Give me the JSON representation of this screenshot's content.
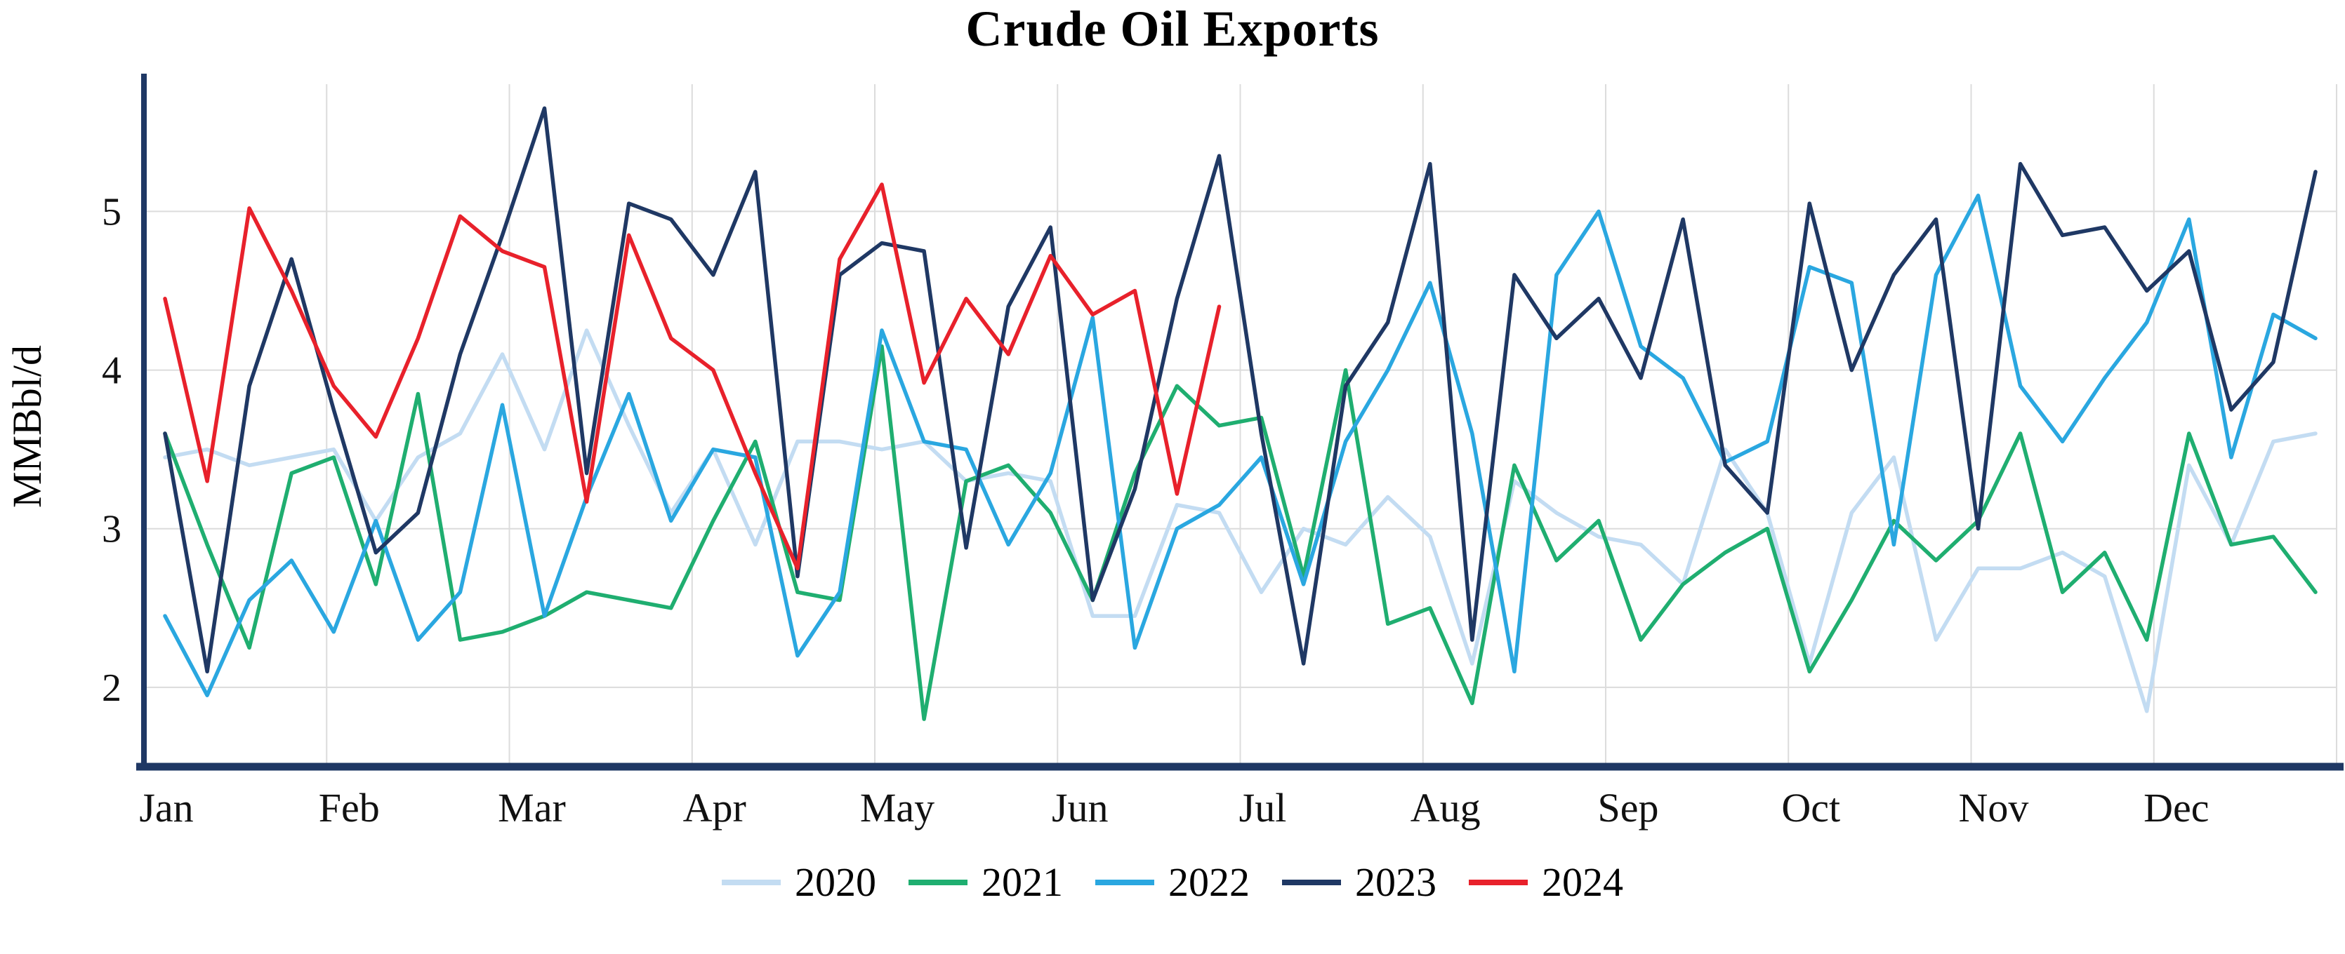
{
  "title": "Crude Oil Exports",
  "colors": {
    "axis": "#1F3864",
    "grid": "#DCDCDC",
    "background": "#FFFFFF",
    "text": "#111111"
  },
  "chart_data": {
    "type": "line",
    "title": "Crude Oil Exports",
    "xlabel": "",
    "ylabel": "MMBbl/d",
    "x_unit": "week-of-year",
    "points_per_year": 52,
    "x_tick_labels": [
      "Jan",
      "Feb",
      "Mar",
      "Apr",
      "May",
      "Jun",
      "Jul",
      "Aug",
      "Sep",
      "Oct",
      "Nov",
      "Dec"
    ],
    "y_ticks": [
      2,
      3,
      4,
      5
    ],
    "ylim": [
      1.5,
      5.78
    ],
    "grid": true,
    "legend_position": "bottom",
    "series": [
      {
        "name": "2020",
        "color": "#C3DCF2",
        "values": [
          3.45,
          3.5,
          3.4,
          3.45,
          3.5,
          3.05,
          3.45,
          3.6,
          4.1,
          3.5,
          4.25,
          3.65,
          3.1,
          3.5,
          2.9,
          3.55,
          3.55,
          3.5,
          3.55,
          3.3,
          3.35,
          3.3,
          2.45,
          2.45,
          3.15,
          3.1,
          2.6,
          3.0,
          2.9,
          3.2,
          2.95,
          2.15,
          3.3,
          3.1,
          2.95,
          2.9,
          2.65,
          3.5,
          3.1,
          2.15,
          3.1,
          3.45,
          2.3,
          2.75,
          2.75,
          2.85,
          2.7,
          1.85,
          3.4,
          2.9,
          3.55,
          3.6
        ]
      },
      {
        "name": "2021",
        "color": "#1FAE70",
        "values": [
          3.6,
          2.9,
          2.25,
          3.35,
          3.45,
          2.65,
          3.85,
          2.3,
          2.35,
          2.45,
          2.6,
          2.55,
          2.5,
          3.05,
          3.55,
          2.6,
          2.55,
          4.15,
          1.8,
          3.3,
          3.4,
          3.1,
          2.55,
          3.35,
          3.9,
          3.65,
          3.7,
          2.7,
          4.0,
          2.4,
          2.5,
          1.9,
          3.4,
          2.8,
          3.05,
          2.3,
          2.65,
          2.85,
          3.0,
          2.1,
          2.55,
          3.05,
          2.8,
          3.05,
          3.6,
          2.6,
          2.85,
          2.3,
          3.6,
          2.9,
          2.95,
          2.6
        ]
      },
      {
        "name": "2022",
        "color": "#2AA7E0",
        "values": [
          2.45,
          1.95,
          2.55,
          2.8,
          2.35,
          3.05,
          2.3,
          2.6,
          3.78,
          2.45,
          3.2,
          3.85,
          3.05,
          3.5,
          3.45,
          2.2,
          2.6,
          4.25,
          3.55,
          3.5,
          2.9,
          3.35,
          4.33,
          2.25,
          3.0,
          3.15,
          3.45,
          2.65,
          3.55,
          4.0,
          4.55,
          3.6,
          2.1,
          4.6,
          5.0,
          4.15,
          3.95,
          3.42,
          3.55,
          4.65,
          4.55,
          2.9,
          4.6,
          5.1,
          3.9,
          3.55,
          3.95,
          4.3,
          4.95,
          3.45,
          4.35,
          4.2
        ]
      },
      {
        "name": "2023",
        "color": "#1F3864",
        "values": [
          3.6,
          2.1,
          3.9,
          4.7,
          3.75,
          2.85,
          3.1,
          4.1,
          4.85,
          5.65,
          3.35,
          5.05,
          4.95,
          4.6,
          5.25,
          2.7,
          4.6,
          4.8,
          4.75,
          2.88,
          4.4,
          4.9,
          2.55,
          3.25,
          4.45,
          5.35,
          3.6,
          2.15,
          3.9,
          4.3,
          5.3,
          2.3,
          4.6,
          4.2,
          4.45,
          3.95,
          4.95,
          3.4,
          3.1,
          5.05,
          4.0,
          4.6,
          4.95,
          3.0,
          5.3,
          4.85,
          4.9,
          4.5,
          4.75,
          3.75,
          4.05,
          5.25
        ]
      },
      {
        "name": "2024",
        "color": "#E8212B",
        "values": [
          4.45,
          3.3,
          5.02,
          4.5,
          3.9,
          3.58,
          4.2,
          4.97,
          4.75,
          4.65,
          3.17,
          4.85,
          4.2,
          4.0,
          3.35,
          2.75,
          4.7,
          5.17,
          3.92,
          4.45,
          4.1,
          4.72,
          4.35,
          4.5,
          3.22,
          4.4
        ]
      }
    ]
  }
}
